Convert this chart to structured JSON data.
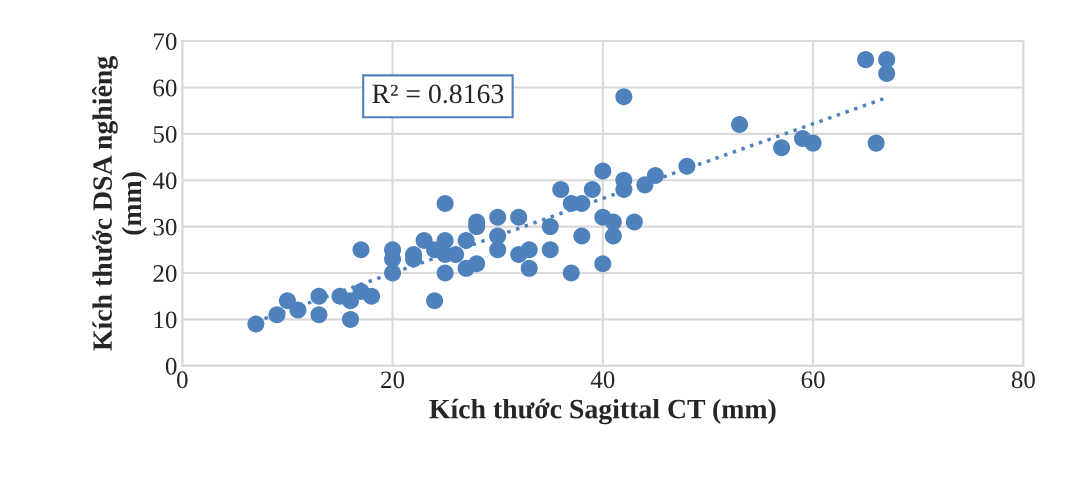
{
  "chart_data": {
    "type": "scatter",
    "xlabel": "Kích thước Sagittal CT (mm)",
    "ylabel": "Kích thước DSA nghiêng\n(mm)",
    "annotations": [
      "R² = 0.8163"
    ],
    "xlim": [
      0,
      80
    ],
    "xticks": [
      0,
      20,
      40,
      60,
      80
    ],
    "ylim": [
      0,
      70
    ],
    "yticks": [
      0,
      10,
      20,
      30,
      40,
      50,
      60,
      70
    ],
    "grid": true,
    "legend": false,
    "series": [
      {
        "color": "#4f81bd",
        "marker": "circle",
        "x": [
          7,
          9,
          10,
          11,
          13,
          13,
          15,
          16,
          16,
          17,
          17,
          18,
          20,
          20,
          20,
          22,
          22,
          23,
          24,
          24,
          25,
          25,
          25,
          25,
          26,
          27,
          27,
          28,
          28,
          28,
          30,
          30,
          30,
          32,
          32,
          33,
          33,
          35,
          35,
          36,
          37,
          37,
          38,
          38,
          39,
          40,
          40,
          40,
          41,
          41,
          42,
          42,
          42,
          43,
          44,
          45,
          48,
          53,
          57,
          59,
          60,
          65,
          66,
          67,
          67
        ],
        "values": [
          9,
          11,
          14,
          12,
          15,
          11,
          15,
          14,
          10,
          16,
          25,
          15,
          25,
          23,
          20,
          24,
          23,
          27,
          14,
          25,
          35,
          27,
          24,
          20,
          24,
          27,
          21,
          31,
          30,
          22,
          32,
          28,
          25,
          32,
          24,
          25,
          21,
          30,
          25,
          38,
          35,
          20,
          35,
          28,
          38,
          42,
          32,
          22,
          31,
          28,
          58,
          40,
          38,
          31,
          39,
          41,
          43,
          52,
          47,
          49,
          48,
          66,
          48,
          66,
          63
        ]
      },
      {
        "type": "line",
        "color": "#4f81bd",
        "marker": "none",
        "line_style": "dotted",
        "x": [
          7,
          67
        ],
        "values": [
          9.5,
          57.8
        ]
      }
    ]
  }
}
